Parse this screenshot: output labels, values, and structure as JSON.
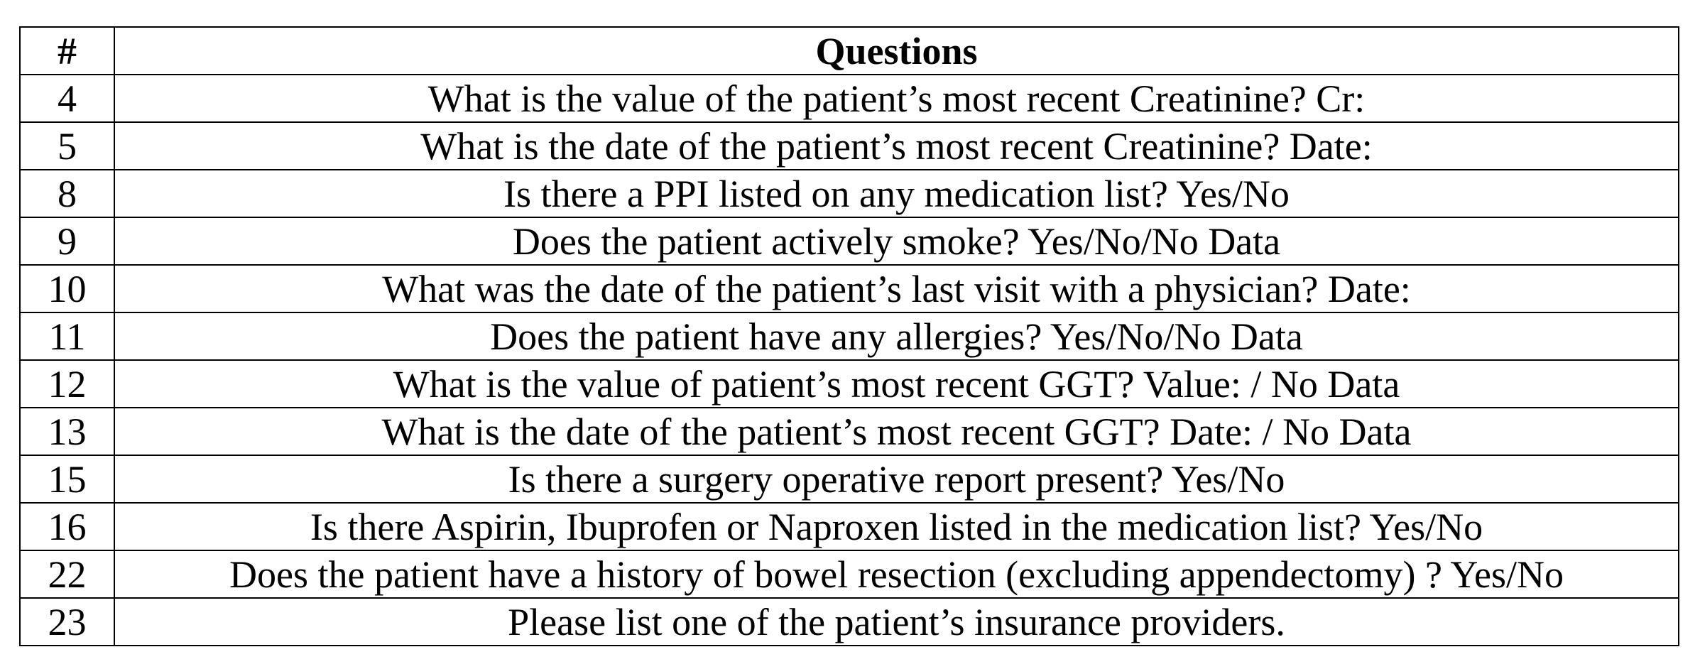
{
  "table": {
    "headers": {
      "number": "#",
      "question": "Questions"
    },
    "rows": [
      {
        "number": "4",
        "question": "What is the value of the patient’s most recent Creatinine? Cr:"
      },
      {
        "number": "5",
        "question": "What is the date of the patient’s most recent Creatinine? Date:"
      },
      {
        "number": "8",
        "question": "Is there a PPI listed on any medication list? Yes/No"
      },
      {
        "number": "9",
        "question": "Does the patient actively smoke? Yes/No/No Data"
      },
      {
        "number": "10",
        "question": "What was the date of the patient’s last visit with a physician? Date:"
      },
      {
        "number": "11",
        "question": "Does the patient have any allergies? Yes/No/No Data"
      },
      {
        "number": "12",
        "question": "What is the value of patient’s most recent GGT? Value: / No Data"
      },
      {
        "number": "13",
        "question": "What is the date of the patient’s most recent GGT? Date: / No Data"
      },
      {
        "number": "15",
        "question": "Is there a surgery operative report present? Yes/No"
      },
      {
        "number": "16",
        "question": "Is there Aspirin, Ibuprofen or Naproxen listed in the medication list? Yes/No"
      },
      {
        "number": "22",
        "question": "Does the patient have a history of bowel resection (excluding appendectomy) ? Yes/No"
      },
      {
        "number": "23",
        "question": "Please list one of the patient’s insurance providers."
      }
    ]
  }
}
